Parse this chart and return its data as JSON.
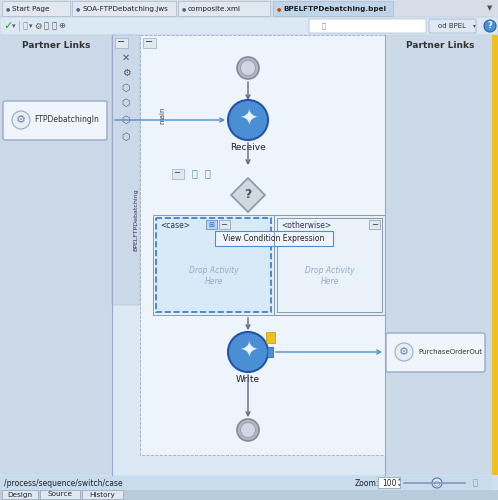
{
  "bg_color": "#cfe0f0",
  "main_area_bg": "#dce9f5",
  "canvas_bg": "#eef4fb",
  "partner_links_left": "Partner Links",
  "partner_links_right": "Partner Links",
  "ftp_in_label": "FTPDebatchingIn",
  "ftp_out_label": "PurchaseOrderOut",
  "receive_label": "Receive",
  "write_label": "Write",
  "case_label": "<case>",
  "otherwise_label": "<otherwise>",
  "drop_activity_here": "Drop Activity\nHere",
  "view_condition": "View Condition Expression",
  "zoom_text": "Zoom:",
  "zoom_val": "100",
  "bottom_path": "/process/sequence/switch/case",
  "tab_labels": [
    "Design",
    "Source",
    "History"
  ],
  "top_tabs": [
    "Start Page",
    "SOA-FTPDebatching.jws",
    "composite.xml",
    "BPELFTPDebatching.bpel"
  ],
  "main_label": "main",
  "bpel_label": "od BPEL",
  "toolbar_top_bg": "#e8eef5",
  "tab_bar_bg": "#d6dfe8",
  "active_tab_bg": "#c0d8f0",
  "status_bar_bg": "#c8dcee",
  "bottom_tab_bg": "#c8d8e8"
}
